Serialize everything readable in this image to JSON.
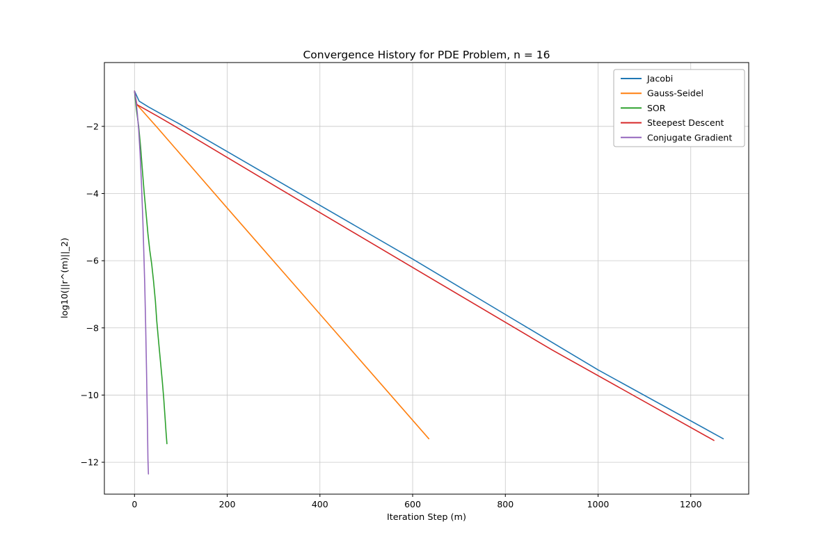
{
  "chart_data": {
    "type": "line",
    "title": "Convergence History for PDE Problem, n = 16",
    "xlabel": "Iteration Step (m)",
    "ylabel": "log10(||r^(m)||_2)",
    "xlim": [
      -65,
      1325
    ],
    "ylim": [
      -12.95,
      -0.1
    ],
    "xticks": [
      0,
      200,
      400,
      600,
      800,
      1000,
      1200
    ],
    "yticks": [
      -2,
      -4,
      -6,
      -8,
      -10,
      -12
    ],
    "grid": true,
    "legend_position": "upper right",
    "series": [
      {
        "name": "Jacobi",
        "color": "#1f77b4",
        "points": [
          [
            0,
            -0.95
          ],
          [
            10,
            -1.25
          ],
          [
            30,
            -1.42
          ],
          [
            60,
            -1.65
          ],
          [
            100,
            -1.95
          ],
          [
            200,
            -2.75
          ],
          [
            400,
            -4.35
          ],
          [
            600,
            -5.95
          ],
          [
            800,
            -7.6
          ],
          [
            1000,
            -9.25
          ],
          [
            1270,
            -11.3
          ]
        ]
      },
      {
        "name": "Gauss-Seidel",
        "color": "#ff7f0e",
        "points": [
          [
            0,
            -0.95
          ],
          [
            5,
            -1.35
          ],
          [
            50,
            -2.05
          ],
          [
            200,
            -4.43
          ],
          [
            400,
            -7.59
          ],
          [
            635,
            -11.3
          ]
        ]
      },
      {
        "name": "SOR",
        "color": "#2ca02c",
        "points": [
          [
            0,
            -0.95
          ],
          [
            4,
            -1.5
          ],
          [
            9,
            -2.0
          ],
          [
            13,
            -2.6
          ],
          [
            17,
            -3.3
          ],
          [
            21,
            -4.0
          ],
          [
            25,
            -4.6
          ],
          [
            29,
            -5.2
          ],
          [
            33,
            -5.7
          ],
          [
            37,
            -6.1
          ],
          [
            41,
            -6.6
          ],
          [
            45,
            -7.2
          ],
          [
            48,
            -7.8
          ],
          [
            52,
            -8.4
          ],
          [
            56,
            -9.0
          ],
          [
            60,
            -9.6
          ],
          [
            63,
            -10.1
          ],
          [
            66,
            -10.7
          ],
          [
            68,
            -11.1
          ],
          [
            70,
            -11.45
          ]
        ]
      },
      {
        "name": "Steepest Descent",
        "color": "#d62728",
        "points": [
          [
            0,
            -0.95
          ],
          [
            5,
            -1.35
          ],
          [
            50,
            -1.7
          ],
          [
            100,
            -2.1
          ],
          [
            300,
            -3.75
          ],
          [
            600,
            -6.2
          ],
          [
            900,
            -8.65
          ],
          [
            1250,
            -11.35
          ]
        ]
      },
      {
        "name": "Conjugate Gradient",
        "color": "#9467bd",
        "points": [
          [
            0,
            -0.95
          ],
          [
            3,
            -1.2
          ],
          [
            6,
            -1.6
          ],
          [
            9,
            -2.1
          ],
          [
            12,
            -2.8
          ],
          [
            15,
            -3.7
          ],
          [
            18,
            -4.8
          ],
          [
            20,
            -5.7
          ],
          [
            22,
            -6.7
          ],
          [
            24,
            -7.9
          ],
          [
            26,
            -9.3
          ],
          [
            28,
            -11.0
          ],
          [
            29,
            -11.9
          ],
          [
            30,
            -12.35
          ]
        ]
      }
    ]
  }
}
